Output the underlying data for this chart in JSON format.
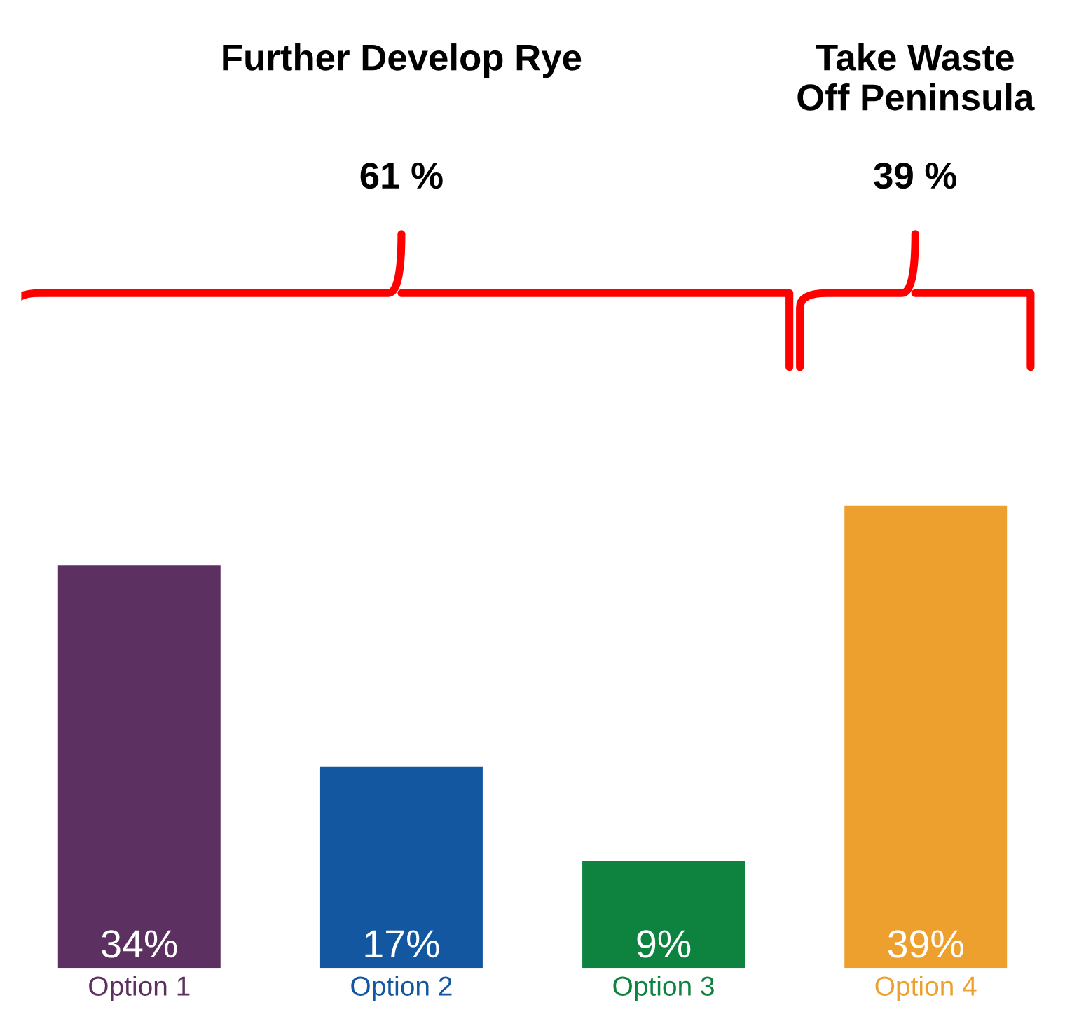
{
  "chart_data": {
    "type": "bar",
    "categories": [
      "Option 1",
      "Option 2",
      "Option 3",
      "Option 4"
    ],
    "values": [
      34,
      17,
      9,
      39
    ],
    "colors": [
      "#5c3060",
      "#1257a0",
      "#0e8340",
      "#eda02e"
    ],
    "value_labels": [
      "34%",
      "17%",
      "9%",
      "39%"
    ],
    "annotations": [
      "Further Develop Rye",
      "61 %",
      "Take Waste\nOff Peninsula",
      "39 %"
    ],
    "tick_labels": "x",
    "grid": false,
    "legend": false
  }
}
